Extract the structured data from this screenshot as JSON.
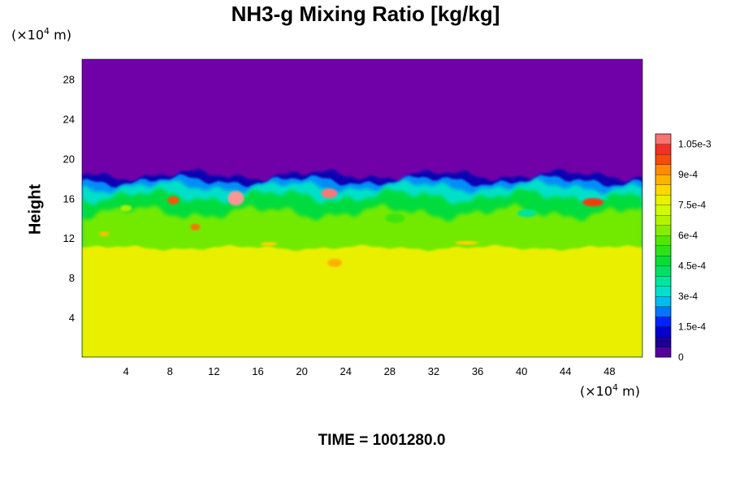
{
  "chart_data": {
    "type": "heatmap",
    "title": "NH3-g Mixing Ratio [kg/kg]",
    "ylabel": "Height",
    "xlabel": "",
    "y_unit_prefix": "(×10",
    "x_unit_prefix": "(×10",
    "unit_exponent": "4",
    "unit_suffix": " m)",
    "xlim": [
      0,
      51
    ],
    "ylim": [
      0,
      30
    ],
    "x_ticks": [
      4,
      8,
      12,
      16,
      20,
      24,
      28,
      32,
      36,
      40,
      44,
      48
    ],
    "y_ticks": [
      4,
      8,
      12,
      16,
      20,
      24,
      28
    ],
    "colorbar": {
      "range": [
        0,
        0.0011
      ],
      "tick_values": [
        0,
        0.00015,
        0.0003,
        0.00045,
        0.0006,
        0.00075,
        0.0009,
        0.00105
      ],
      "tick_labels": [
        "0",
        "1.5e-4",
        "3e-4",
        "4.5e-4",
        "6e-4",
        "7.5e-4",
        "9e-4",
        "1.05e-3"
      ],
      "levels": 22
    },
    "field_summary": {
      "upper_layer_value": 0,
      "lower_layer_value": 0.00078,
      "lower_layer_top_height": 11,
      "mixed_layer_top_height": 18
    },
    "footer": "TIME = 1001280.0"
  },
  "colors": {
    "upper": "#7000a8",
    "lower": "#deff00",
    "plot_bg": "#7000a8"
  }
}
